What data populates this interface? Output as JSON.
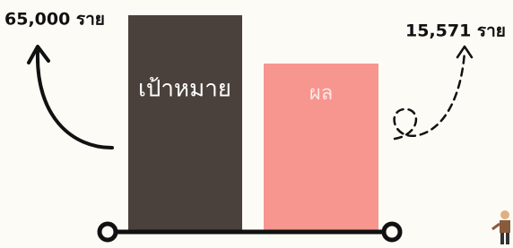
{
  "labels": {
    "target_value": "65,000 ราย",
    "result_value": "15,571 ราย"
  },
  "bars": {
    "target": "เป้าหมาย",
    "result": "ผล"
  }
}
